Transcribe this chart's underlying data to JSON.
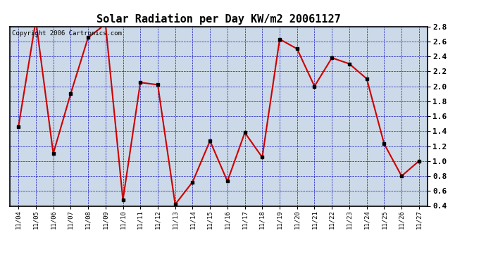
{
  "title": "Solar Radiation per Day KW/m2 20061127",
  "copyright_text": "Copyright 2006 Cartronics.com",
  "dates": [
    "11/04",
    "11/05",
    "11/06",
    "11/07",
    "11/08",
    "11/09",
    "11/10",
    "11/11",
    "11/12",
    "11/13",
    "11/14",
    "11/15",
    "11/16",
    "11/17",
    "11/18",
    "11/19",
    "11/20",
    "11/21",
    "11/22",
    "11/23",
    "11/24",
    "11/25",
    "11/26",
    "11/27"
  ],
  "values": [
    1.46,
    2.88,
    1.1,
    1.9,
    2.65,
    2.83,
    0.48,
    2.05,
    2.02,
    0.42,
    0.72,
    1.27,
    0.73,
    1.38,
    1.05,
    2.63,
    2.5,
    2.0,
    2.38,
    2.3,
    2.1,
    1.23,
    0.8,
    1.0
  ],
  "ylim": [
    0.4,
    2.8
  ],
  "yticks": [
    0.4,
    0.6,
    0.8,
    1.0,
    1.2,
    1.4,
    1.6,
    1.8,
    2.0,
    2.2,
    2.4,
    2.6,
    2.8
  ],
  "line_color": "#cc0000",
  "marker_color": "#000000",
  "background_color": "#ccd9e8",
  "grid_color": "#0000bb",
  "title_fontsize": 11,
  "copyright_fontsize": 6.5
}
